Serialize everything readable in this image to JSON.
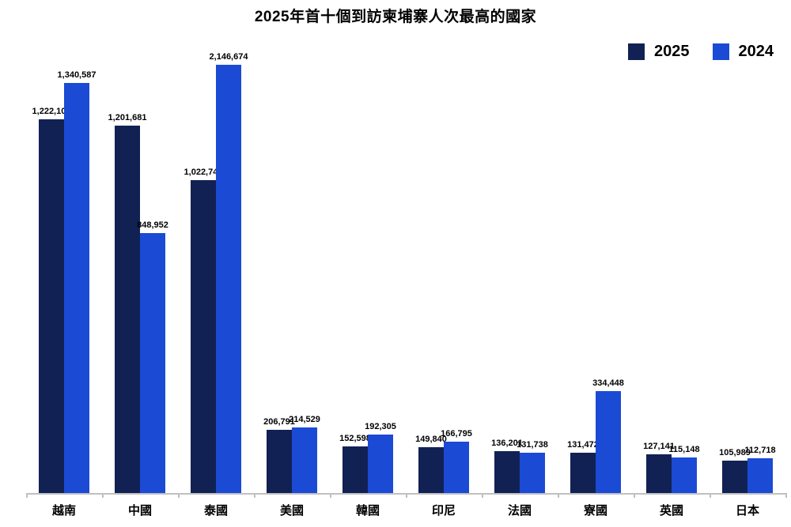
{
  "title": "2025年首十個到訪柬埔寨人次最高的國家",
  "colors": {
    "series_2025": "#122154",
    "series_2024": "#1b4ad5",
    "axis": "#c0c0c0",
    "background": "#ffffff",
    "text": "#000000"
  },
  "legend": {
    "position": "top-right",
    "items": [
      {
        "label": "2025",
        "color": "#122154"
      },
      {
        "label": "2024",
        "color": "#1b4ad5"
      }
    ]
  },
  "chart_data": {
    "type": "bar",
    "title": "2025年首十個到訪柬埔寨人次最高的國家",
    "xlabel": "",
    "ylabel": "",
    "grid": false,
    "legend_position": "top-right",
    "ylim": [
      0,
      1400000
    ],
    "clipped_to_ylim": true,
    "categories": [
      "越南",
      "中國",
      "泰國",
      "美國",
      "韓國",
      "印尼",
      "法國",
      "寮國",
      "英國",
      "日本"
    ],
    "series": [
      {
        "name": "2025",
        "color": "#122154",
        "values": [
          1222101,
          1201681,
          1022743,
          206791,
          152598,
          149840,
          136201,
          131472,
          127141,
          105989
        ],
        "value_labels": [
          "1,222,101",
          "1,201,681",
          "1,022,743",
          "206,791",
          "152,598",
          "149,840",
          "136,201",
          "131,472",
          "127,141",
          "105,989"
        ]
      },
      {
        "name": "2024",
        "color": "#1b4ad5",
        "values": [
          1340587,
          848952,
          2146674,
          214529,
          192305,
          166795,
          131738,
          334448,
          115148,
          112718
        ],
        "value_labels": [
          "1,340,587",
          "848,952",
          "2,146,674",
          "214,529",
          "192,305",
          "166,795",
          "131,738",
          "334,448",
          "115,148",
          "112,718"
        ]
      }
    ]
  }
}
